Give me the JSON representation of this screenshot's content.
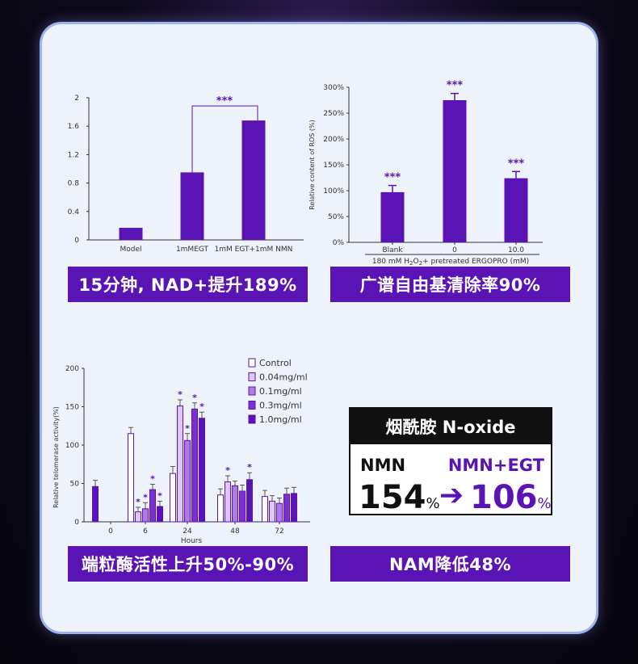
{
  "chart_data": [
    {
      "type": "bar",
      "categories": [
        "Model",
        "1mMEGT",
        "1mM EGT+1mM NMN"
      ],
      "values": [
        0.17,
        0.95,
        1.68
      ],
      "ylim": [
        0,
        2
      ],
      "yticks": [
        "0",
        "0.4",
        "0.8",
        "1.2",
        "1.6",
        "2"
      ],
      "ytick_values": [
        0,
        0.4,
        0.8,
        1.2,
        1.6,
        2
      ],
      "annotation": "***",
      "color": "#5a14b6"
    },
    {
      "type": "bar",
      "categories": [
        "Blank",
        "0",
        "10.0"
      ],
      "values": [
        97,
        275,
        124
      ],
      "errors": [
        13,
        13,
        13
      ],
      "significance": [
        "***",
        "***",
        "***"
      ],
      "ylim": [
        0,
        300
      ],
      "yticks": [
        "0%",
        "50%",
        "100%",
        "150%",
        "200%",
        "250%",
        "300%"
      ],
      "ytick_values": [
        0,
        50,
        100,
        150,
        200,
        250,
        300
      ],
      "ylabel": "Relative content of ROS (%)",
      "xlabel_parts": [
        "180 mM H",
        "2",
        "O",
        "2",
        "+ pretreated ERGOPRO (mM)"
      ],
      "color": "#5a14b6"
    },
    {
      "type": "bar",
      "categories": [
        "0",
        "6",
        "24",
        "48",
        "72"
      ],
      "xlabel": "Hours",
      "ylabel": "Relative telomerase activity(%)",
      "ylim": [
        0,
        200
      ],
      "yticks": [
        "0",
        "50",
        "100",
        "150",
        "200"
      ],
      "ytick_values": [
        0,
        50,
        100,
        150,
        200
      ],
      "series": [
        {
          "name": "Control",
          "values": [
            null,
            115,
            63,
            35,
            33
          ],
          "errors": [
            0,
            8,
            9,
            8,
            8
          ],
          "color": "#ffffff"
        },
        {
          "name": "0.04mg/ml",
          "values": [
            null,
            13,
            151,
            52,
            27
          ],
          "errors": [
            0,
            6,
            8,
            8,
            7
          ],
          "color": "#dcc7f5"
        },
        {
          "name": "0.1mg/ml",
          "values": [
            null,
            17,
            106,
            47,
            24
          ],
          "errors": [
            0,
            8,
            9,
            6,
            7
          ],
          "color": "#b07ae6"
        },
        {
          "name": "0.3mg/ml",
          "values": [
            null,
            42,
            147,
            40,
            36
          ],
          "errors": [
            0,
            7,
            8,
            8,
            8
          ],
          "color": "#7d2fd6"
        },
        {
          "name": "1.0mg/ml",
          "values": [
            46,
            20,
            135,
            55,
            37
          ],
          "errors": [
            8,
            7,
            8,
            9,
            8
          ],
          "color": "#5a14b6"
        }
      ],
      "stars": [
        {
          "group": 1,
          "series": 1,
          "label": "*"
        },
        {
          "group": 1,
          "series": 2,
          "label": "*"
        },
        {
          "group": 1,
          "series": 3,
          "label": "*"
        },
        {
          "group": 1,
          "series": 4,
          "label": "*"
        },
        {
          "group": 2,
          "series": 1,
          "label": "*"
        },
        {
          "group": 2,
          "series": 2,
          "label": "*"
        },
        {
          "group": 2,
          "series": 3,
          "label": "*"
        },
        {
          "group": 2,
          "series": 4,
          "label": "*"
        },
        {
          "group": 3,
          "series": 1,
          "label": "*"
        },
        {
          "group": 3,
          "series": 4,
          "label": "*"
        }
      ]
    }
  ],
  "banners": {
    "nad": "15分钟, NAD+提升189%",
    "ros": "广谱自由基清除率90%",
    "telomerase": "端粒酶活性上升50%-90%",
    "nam": "NAM降低48%"
  },
  "nam_box": {
    "title": "烟酰胺 N-oxide",
    "left_label": "NMN",
    "right_label": "NMN+EGT",
    "left_value": "154",
    "right_value": "106",
    "percent": "%",
    "arrow": "➔"
  },
  "colors": {
    "accent": "#5a14b6",
    "star": "#5a14b6",
    "card": "#eef2fb",
    "text": "#111111"
  }
}
